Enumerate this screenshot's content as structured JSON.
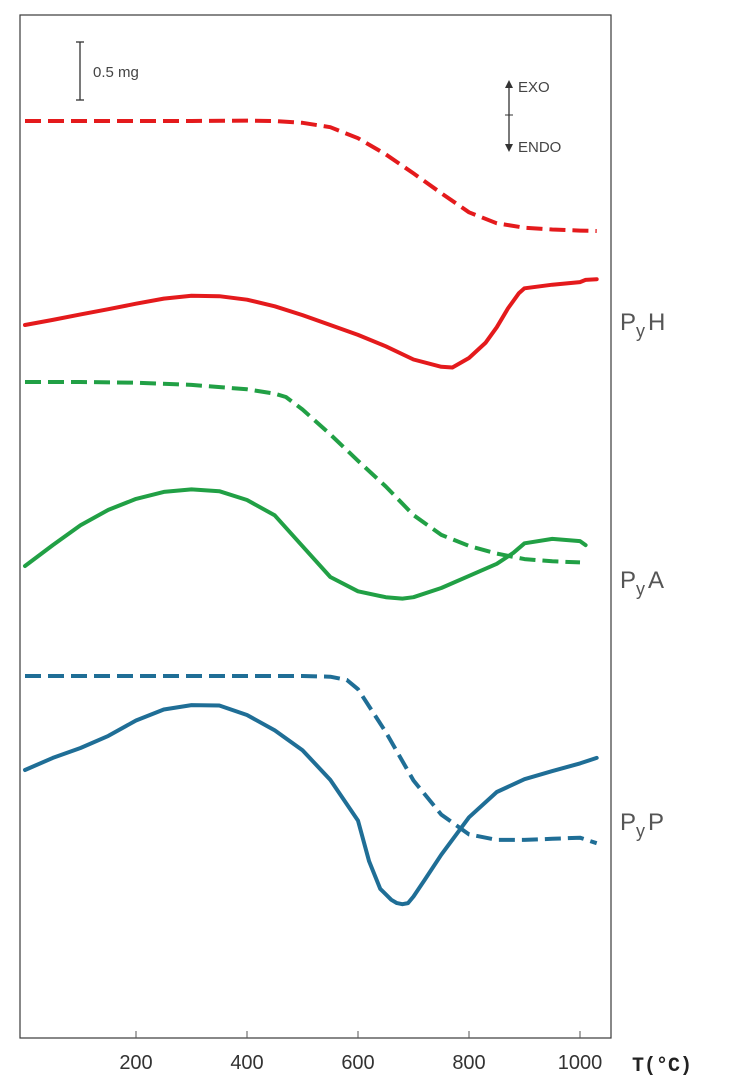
{
  "chart_data": {
    "type": "line",
    "xlabel": "T(°C)",
    "xlim": [
      0,
      1050
    ],
    "x_ticks": [
      200,
      400,
      600,
      800,
      1000
    ],
    "scale_bar_label": "0.5 mg",
    "direction_labels": {
      "exo": "EXO",
      "endo": "ENDO"
    },
    "grid": false,
    "legend": "none",
    "samples": [
      {
        "label_main": "P",
        "label_sub": "y",
        "label_suffix": "H",
        "color": "#e41a1c",
        "dashed_curve": {
          "x": [
            0,
            100,
            200,
            300,
            400,
            450,
            500,
            550,
            600,
            650,
            700,
            750,
            800,
            850,
            900,
            950,
            1000,
            1030
          ],
          "y": [
            0.0,
            0.0,
            0.0,
            0.0,
            0.02,
            0.0,
            -0.08,
            -0.28,
            -0.78,
            -1.52,
            -2.38,
            -3.28,
            -4.15,
            -4.65,
            -4.85,
            -4.93,
            -4.98,
            -5.0
          ]
        },
        "solid_curve": {
          "x": [
            0,
            50,
            100,
            150,
            200,
            250,
            300,
            350,
            400,
            450,
            500,
            550,
            600,
            650,
            700,
            750,
            770,
            800,
            830,
            850,
            870,
            890,
            900,
            950,
            1000,
            1010,
            1030
          ],
          "y": [
            0.0,
            0.23,
            0.48,
            0.72,
            0.97,
            1.2,
            1.33,
            1.31,
            1.15,
            0.85,
            0.45,
            0.0,
            -0.45,
            -0.97,
            -1.57,
            -1.9,
            -1.93,
            -1.5,
            -0.8,
            -0.1,
            0.75,
            1.45,
            1.67,
            1.83,
            1.95,
            2.05,
            2.08
          ]
        }
      },
      {
        "label_main": "P",
        "label_sub": "y",
        "label_suffix": "A",
        "color": "#21a045",
        "dashed_curve": {
          "x": [
            0,
            100,
            200,
            300,
            400,
            450,
            470,
            500,
            550,
            600,
            650,
            700,
            750,
            800,
            850,
            900,
            950,
            1000
          ],
          "y": [
            0.0,
            0.0,
            -0.03,
            -0.13,
            -0.33,
            -0.53,
            -0.68,
            -1.25,
            -2.38,
            -3.58,
            -4.75,
            -6.05,
            -6.95,
            -7.45,
            -7.8,
            -8.05,
            -8.15,
            -8.2
          ]
        },
        "solid_curve": {
          "x": [
            0,
            50,
            100,
            150,
            200,
            250,
            300,
            350,
            400,
            450,
            500,
            550,
            600,
            650,
            680,
            700,
            750,
            800,
            850,
            880,
            900,
            950,
            1000,
            1010
          ],
          "y": [
            0.0,
            0.95,
            1.85,
            2.55,
            3.05,
            3.37,
            3.48,
            3.4,
            3.0,
            2.3,
            0.9,
            -0.5,
            -1.15,
            -1.42,
            -1.48,
            -1.42,
            -1.0,
            -0.45,
            0.1,
            0.6,
            1.03,
            1.23,
            1.13,
            0.95
          ]
        }
      },
      {
        "label_main": "P",
        "label_sub": "y",
        "label_suffix": "P",
        "color": "#1f6e96",
        "dashed_curve": {
          "x": [
            0,
            100,
            200,
            300,
            400,
            500,
            550,
            580,
            600,
            650,
            700,
            750,
            800,
            850,
            900,
            950,
            1000,
            1030
          ],
          "y": [
            0.0,
            0.0,
            0.0,
            0.0,
            0.0,
            0.0,
            -0.03,
            -0.18,
            -0.6,
            -2.55,
            -4.75,
            -6.3,
            -7.2,
            -7.45,
            -7.45,
            -7.4,
            -7.35,
            -7.6
          ]
        },
        "solid_curve": {
          "x": [
            0,
            50,
            100,
            150,
            200,
            250,
            300,
            350,
            400,
            450,
            500,
            550,
            600,
            620,
            640,
            660,
            670,
            680,
            690,
            700,
            720,
            750,
            800,
            850,
            900,
            950,
            1000,
            1030
          ],
          "y": [
            0.0,
            0.55,
            1.0,
            1.55,
            2.25,
            2.75,
            2.95,
            2.93,
            2.5,
            1.8,
            0.9,
            -0.45,
            -2.3,
            -4.15,
            -5.4,
            -5.9,
            -6.05,
            -6.1,
            -6.05,
            -5.75,
            -5.0,
            -3.85,
            -2.15,
            -1.0,
            -0.42,
            -0.05,
            0.3,
            0.55
          ]
        }
      }
    ]
  }
}
